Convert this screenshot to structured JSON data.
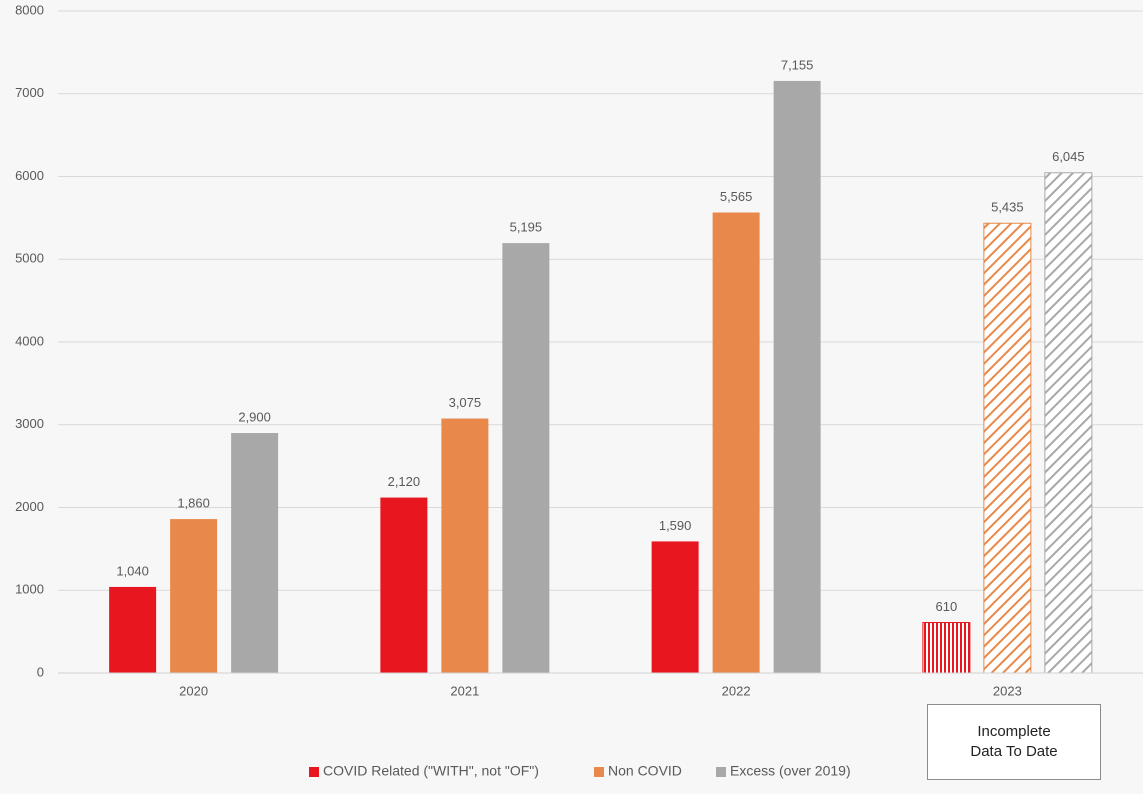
{
  "chart_data": {
    "type": "bar",
    "categories": [
      "2020",
      "2021",
      "2022",
      "2023"
    ],
    "series": [
      {
        "name": "COVID Related (\"WITH\", not \"OF\")",
        "color": "#e8161e",
        "values": [
          1040,
          2120,
          1590,
          610
        ],
        "value_labels": [
          "1,040",
          "2,120",
          "1,590",
          "610"
        ]
      },
      {
        "name": "Non COVID",
        "color": "#e8884a",
        "values": [
          1860,
          3075,
          5565,
          5435
        ],
        "value_labels": [
          "1,860",
          "3,075",
          "5,565",
          "5,435"
        ]
      },
      {
        "name": "Excess (over 2019)",
        "color": "#a8a8a8",
        "values": [
          2900,
          5195,
          7155,
          6045
        ],
        "value_labels": [
          "2,900",
          "5,195",
          "7,155",
          "6,045"
        ]
      }
    ],
    "hatch": [
      false,
      false,
      false,
      true
    ],
    "ylim": [
      0,
      8000
    ],
    "yticks": [
      0,
      1000,
      2000,
      3000,
      4000,
      5000,
      6000,
      7000,
      8000
    ],
    "grid": true,
    "legend": "bottom",
    "annotation": "Incomplete Data To Date"
  }
}
